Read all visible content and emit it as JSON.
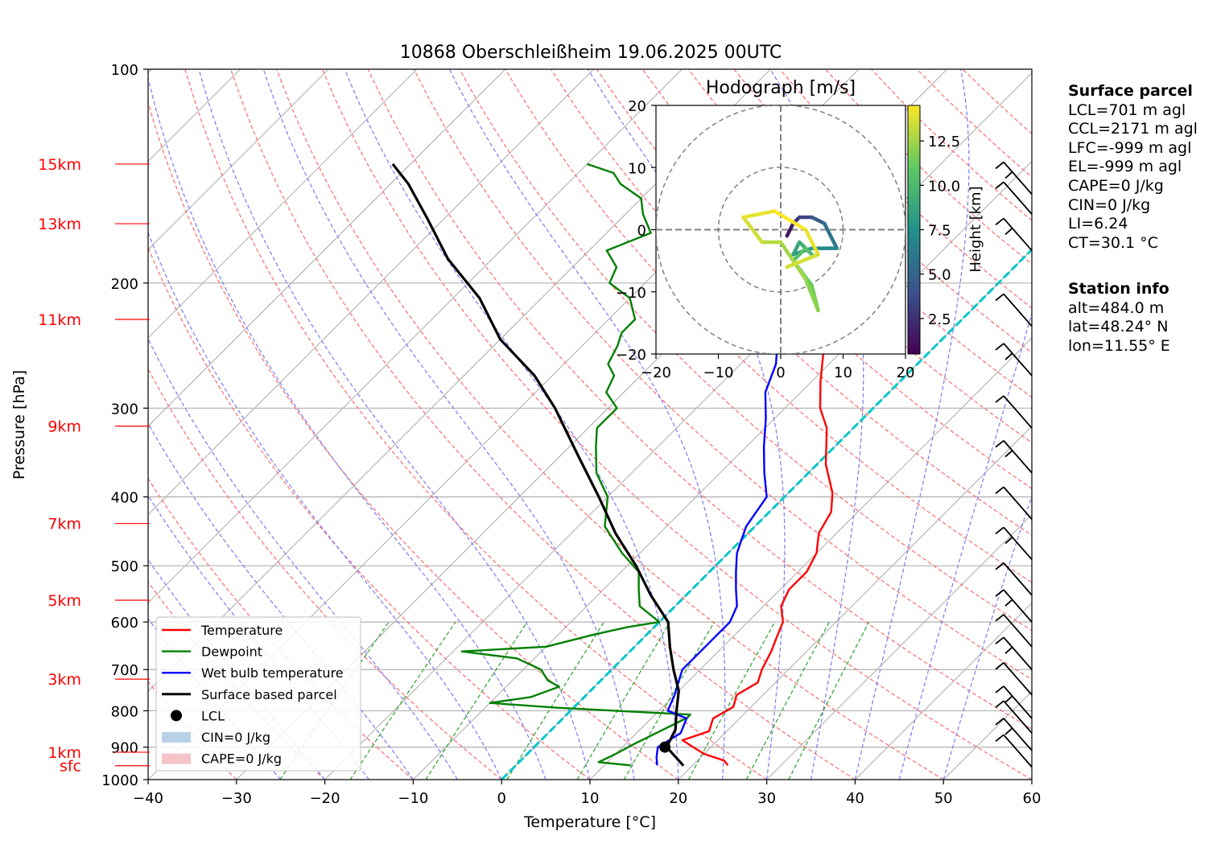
{
  "chart_data": {
    "type": "skew-t log-p",
    "title": "10868 Oberschleißheim 19.06.2025 00UTC",
    "xlabel": "Temperature [°C]",
    "ylabel": "Pressure [hPa]",
    "xlim": [
      -40,
      60
    ],
    "ylim": [
      1000,
      100
    ],
    "y_scale": "log",
    "x_ticks": [
      -40,
      -30,
      -20,
      -10,
      0,
      10,
      20,
      30,
      40,
      50,
      60
    ],
    "y_ticks": [
      100,
      200,
      300,
      400,
      500,
      600,
      700,
      800,
      900,
      1000
    ],
    "grid": true,
    "colors": {
      "temperature": "#ff0000",
      "dewpoint": "#008000",
      "wetbulb": "#0000ff",
      "parcel": "#000000",
      "dry_adiabats": "#ff6b6b",
      "moist_adiabats": "#7b7bf0",
      "mixing_ratio": "#2ca02c",
      "freezing_level": "#00c8c8",
      "height_labels": "#ff0000"
    },
    "height_labels": [
      {
        "label": "15km",
        "p": 136
      },
      {
        "label": "13km",
        "p": 165
      },
      {
        "label": "11km",
        "p": 225
      },
      {
        "label": "9km",
        "p": 318
      },
      {
        "label": "7km",
        "p": 436
      },
      {
        "label": "5km",
        "p": 559
      },
      {
        "label": "3km",
        "p": 722
      },
      {
        "label": "1km",
        "p": 915
      },
      {
        "label": "sfc",
        "p": 956
      }
    ],
    "series": [
      {
        "name": "Temperature",
        "points": [
          [
            24,
            955
          ],
          [
            23,
            940
          ],
          [
            20,
            920
          ],
          [
            18,
            900
          ],
          [
            16,
            880
          ],
          [
            18,
            855
          ],
          [
            17,
            820
          ],
          [
            18,
            790
          ],
          [
            17,
            760
          ],
          [
            18,
            730
          ],
          [
            17,
            700
          ],
          [
            16,
            660
          ],
          [
            15,
            630
          ],
          [
            14,
            600
          ],
          [
            12,
            570
          ],
          [
            11,
            540
          ],
          [
            11,
            510
          ],
          [
            10,
            480
          ],
          [
            8,
            450
          ],
          [
            7,
            420
          ],
          [
            5,
            395
          ],
          [
            1,
            360
          ],
          [
            -3,
            320
          ],
          [
            -6,
            300
          ],
          [
            -9,
            275
          ],
          [
            -12,
            250
          ],
          [
            -15,
            230
          ],
          [
            -19,
            210
          ],
          [
            -22,
            195
          ],
          [
            -24,
            175
          ],
          [
            -25,
            165
          ],
          [
            -28,
            155
          ],
          [
            -33,
            145
          ],
          [
            -36,
            138
          ],
          [
            -42,
            132
          ]
        ]
      },
      {
        "name": "Dewpoint",
        "points": [
          [
            13,
            955
          ],
          [
            9,
            945
          ],
          [
            10,
            920
          ],
          [
            11,
            890
          ],
          [
            14,
            818
          ],
          [
            14,
            810
          ],
          [
            -2,
            792
          ],
          [
            -10,
            780
          ],
          [
            -6,
            765
          ],
          [
            -4,
            740
          ],
          [
            -6,
            725
          ],
          [
            -8,
            700
          ],
          [
            -12,
            675
          ],
          [
            -19,
            660
          ],
          [
            -10,
            650
          ],
          [
            -6,
            625
          ],
          [
            -3,
            610
          ],
          [
            0,
            600
          ],
          [
            -4,
            570
          ],
          [
            -6,
            540
          ],
          [
            -8,
            510
          ],
          [
            -12,
            480
          ],
          [
            -17,
            440
          ],
          [
            -20,
            400
          ],
          [
            -24,
            370
          ],
          [
            -27,
            340
          ],
          [
            -29,
            320
          ],
          [
            -29,
            300
          ],
          [
            -32,
            285
          ],
          [
            -33,
            270
          ],
          [
            -35,
            260
          ],
          [
            -36,
            245
          ],
          [
            -37,
            235
          ],
          [
            -37,
            225
          ],
          [
            -40,
            210
          ],
          [
            -44,
            200
          ],
          [
            -45,
            190
          ],
          [
            -48,
            180
          ],
          [
            -45,
            170
          ],
          [
            -48,
            160
          ],
          [
            -50,
            152
          ],
          [
            -54,
            145
          ],
          [
            -56,
            140
          ],
          [
            -60,
            136
          ]
        ]
      },
      {
        "name": "Wet bulb temperature",
        "points": [
          [
            16,
            955
          ],
          [
            15,
            930
          ],
          [
            14,
            900
          ],
          [
            15,
            860
          ],
          [
            14,
            820
          ],
          [
            11,
            800
          ],
          [
            10,
            760
          ],
          [
            9,
            730
          ],
          [
            8,
            700
          ],
          [
            8,
            660
          ],
          [
            8,
            630
          ],
          [
            8,
            600
          ],
          [
            7,
            570
          ],
          [
            5,
            540
          ],
          [
            3,
            510
          ],
          [
            1,
            480
          ],
          [
            -1,
            440
          ],
          [
            -2,
            400
          ],
          [
            -5,
            370
          ],
          [
            -8,
            340
          ],
          [
            -11,
            310
          ],
          [
            -14,
            285
          ],
          [
            -16,
            260
          ],
          [
            -20,
            230
          ],
          [
            -25,
            205
          ],
          [
            -29,
            190
          ],
          [
            -33,
            170
          ],
          [
            -36,
            155
          ],
          [
            -41,
            143
          ],
          [
            -43,
            136
          ]
        ]
      },
      {
        "name": "Surface based parcel",
        "points": [
          [
            19,
            956
          ],
          [
            15,
            900
          ],
          [
            14,
            850
          ],
          [
            12,
            800
          ],
          [
            10,
            750
          ],
          [
            7,
            700
          ],
          [
            4,
            650
          ],
          [
            1,
            600
          ],
          [
            -4,
            550
          ],
          [
            -9,
            500
          ],
          [
            -15,
            450
          ],
          [
            -21,
            400
          ],
          [
            -28,
            350
          ],
          [
            -36,
            300
          ],
          [
            -42,
            270
          ],
          [
            -50,
            240
          ],
          [
            -57,
            210
          ],
          [
            -65,
            185
          ],
          [
            -72,
            162
          ],
          [
            -78,
            145
          ],
          [
            -82,
            136
          ]
        ]
      }
    ],
    "lcl": {
      "t": 14.8,
      "p": 900
    },
    "legend": {
      "placement": "lower-left",
      "entries": [
        "Temperature",
        "Dewpoint",
        "Wet bulb temperature",
        "Surface based parcel",
        "LCL",
        "CIN=0 J/kg",
        "CAPE=0 J/kg"
      ]
    },
    "hodograph": {
      "type": "line",
      "title": "Hodograph [m/s]",
      "xlim": [
        -20,
        20
      ],
      "ylim": [
        -20,
        20
      ],
      "x_ticks": [
        -20,
        -10,
        0,
        10,
        20
      ],
      "y_ticks": [
        -20,
        -10,
        0,
        10,
        20
      ],
      "rings": [
        10,
        20
      ],
      "colorbar": {
        "label": "Height [km]",
        "ticks": [
          2.5,
          5.0,
          7.5,
          10.0,
          12.5
        ],
        "range": [
          0.5,
          14.5
        ]
      },
      "points": [
        [
          1,
          -1,
          0.5
        ],
        [
          2,
          1,
          1.5
        ],
        [
          3,
          2,
          2.5
        ],
        [
          5,
          2,
          3.5
        ],
        [
          7,
          1,
          4.5
        ],
        [
          8,
          -1,
          5.5
        ],
        [
          9,
          -3,
          6.2
        ],
        [
          5,
          -3,
          7.0
        ],
        [
          2,
          -4,
          7.8
        ],
        [
          3,
          -2,
          8.5
        ],
        [
          5,
          -4,
          9.2
        ],
        [
          4,
          -3,
          10.0
        ],
        [
          2,
          -5,
          10.5
        ],
        [
          5,
          -9,
          11.0
        ],
        [
          6,
          -13,
          11.5
        ],
        [
          4,
          -8,
          12.0
        ],
        [
          0,
          -2,
          12.5
        ],
        [
          -3,
          -2,
          13.0
        ],
        [
          -6,
          2,
          13.5
        ],
        [
          -1,
          3,
          14.0
        ],
        [
          4,
          0,
          14.5
        ],
        [
          6,
          -4,
          14.0
        ],
        [
          1,
          -6,
          13.6
        ]
      ]
    },
    "wind_barbs": [
      {
        "p": 150,
        "label": "barb"
      },
      {
        "p": 160,
        "label": "barb"
      },
      {
        "p": 180,
        "label": "barb"
      },
      {
        "p": 230,
        "label": "barb"
      },
      {
        "p": 270,
        "label": "barb"
      },
      {
        "p": 320,
        "label": "barb"
      },
      {
        "p": 370,
        "label": "barb"
      },
      {
        "p": 430,
        "label": "barb"
      },
      {
        "p": 490,
        "label": "barb"
      },
      {
        "p": 550,
        "label": "barb"
      },
      {
        "p": 600,
        "label": "barb"
      },
      {
        "p": 650,
        "label": "barb"
      },
      {
        "p": 700,
        "label": "barb"
      },
      {
        "p": 760,
        "label": "barb"
      },
      {
        "p": 820,
        "label": "barb"
      },
      {
        "p": 860,
        "label": "barb"
      },
      {
        "p": 910,
        "label": "barb"
      },
      {
        "p": 960,
        "label": "barb"
      }
    ]
  },
  "surface_parcel": {
    "heading": "Surface parcel",
    "lines": [
      "LCL=701 m agl",
      "CCL=2171 m agl",
      "LFC=-999 m agl",
      "EL=-999 m agl",
      "CAPE=0 J/kg",
      "CIN=0 J/kg",
      "LI=6.24",
      "CT=30.1 °C"
    ]
  },
  "station_info": {
    "heading": "Station info",
    "lines": [
      "alt=484.0 m",
      "lat=48.24° N",
      "lon=11.55° E"
    ]
  }
}
